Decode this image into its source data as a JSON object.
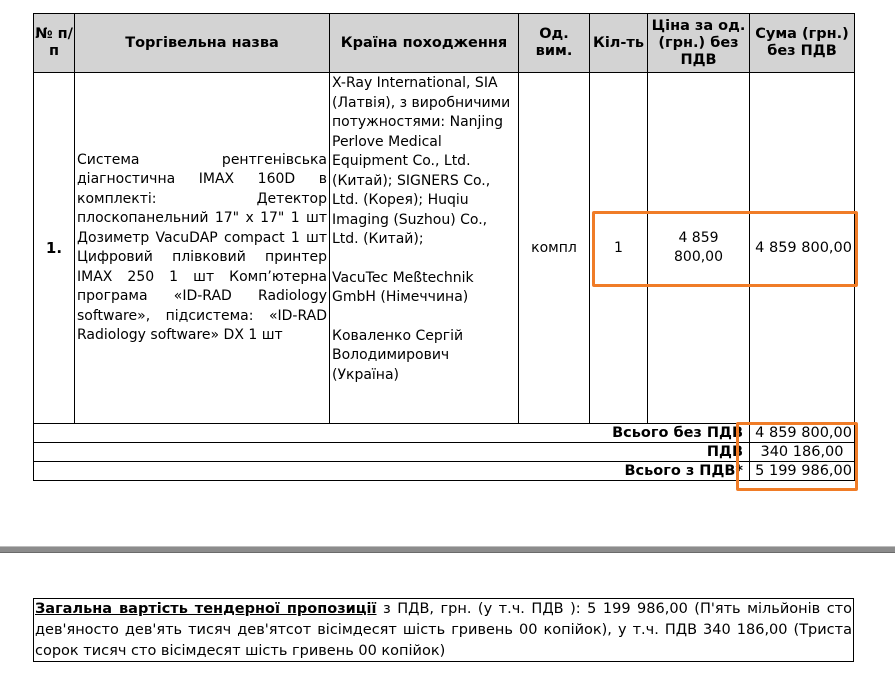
{
  "table": {
    "headers": {
      "num": "№ п/п",
      "name": "Торгівельна назва",
      "country": "Країна походження",
      "unit": "Од. вим.",
      "qty": "Кіл-ть",
      "price": "Ціна за од. (грн.) без ПДВ",
      "sum": "Сума (грн.) без ПДВ"
    },
    "row": {
      "num": "1.",
      "name": "Система рентгенівська діагностична IMAX 160D в комплекті: Детектор плоскопанельний 17\" х 17\" 1 шт Дозиметр VacuDAP compact 1 шт Цифровий плівковий принтер IMAX 250 1 шт Комп’ютерна програма «ID-RAD Radiology software», підсистема: «ID-RAD Radiology software» DX 1 шт",
      "country_1": "X-Ray International, SIA (Латвія), з виробничими потужностями: Nanjing Perlove Medical Equipment Co., Ltd. (Китай); SIGNERS Co., Ltd. (Корея); Huqiu Imaging (Suzhou) Co., Ltd. (Китай);",
      "country_2": "VacuTec Meßtechnik GmbH (Німеччина)",
      "country_3": "Коваленко Сергій Володимирович (Україна)",
      "unit": "компл",
      "qty": "1",
      "price_line1": "4 859",
      "price_line2": "800,00",
      "sum": "4 859 800,00"
    },
    "totals": [
      {
        "label": "Всього без ПДВ",
        "value": "4 859 800,00"
      },
      {
        "label": "ПДВ",
        "value": "340 186,00"
      },
      {
        "label": "Всього з ПДВ*",
        "value": "5 199 986,00"
      }
    ]
  },
  "summary": {
    "lead": "Загальна вартість тендерної пропозиції",
    "text": " з ПДВ, грн. (у т.ч. ПДВ ): 5 199 986,00 (П'ять мільйонів сто дев'яносто дев'ять тисяч дев'ятсот вісімдесят шість гривень 00 копійок), у т.ч. ПДВ 340 186,00 (Триста сорок тисяч сто вісімдесят шість гривень 00 копійок)"
  },
  "colors": {
    "highlight": "#f07c27",
    "header_bg": "#d3d3d3",
    "divider": "#8c8c8c"
  }
}
